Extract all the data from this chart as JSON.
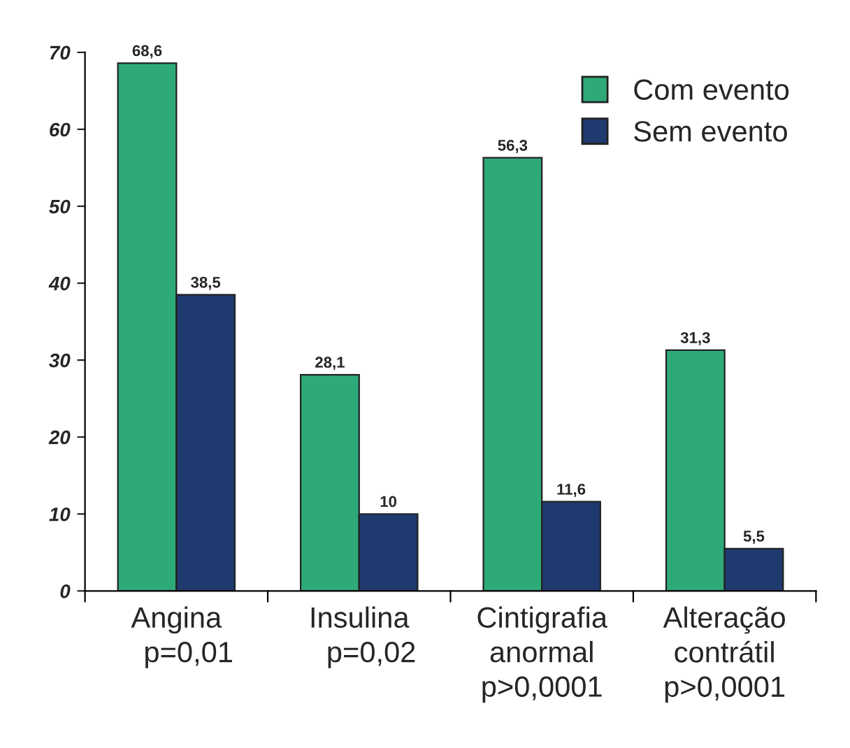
{
  "chart_data": {
    "type": "bar",
    "categories": [
      "Angina\n   p=0,01",
      "Insulina\n   p=0,02",
      "Cintigrafia\nanormal\np>0,0001",
      "Alteração\ncontrátil\np>0,0001"
    ],
    "series": [
      {
        "name": "Com evento",
        "color": "#2eaa78",
        "values": [
          68.6,
          28.1,
          56.3,
          31.3
        ],
        "value_labels": [
          "68,6",
          "28,1",
          "56,3",
          "31,3"
        ]
      },
      {
        "name": "Sem evento",
        "color": "#1f3a6e",
        "values": [
          38.5,
          10,
          11.6,
          5.5
        ],
        "value_labels": [
          "38,5",
          "10",
          "11,6",
          "5,5"
        ]
      }
    ],
    "ylim": [
      0,
      70
    ],
    "yticks": [
      0,
      10,
      20,
      30,
      40,
      50,
      60,
      70
    ],
    "grid": false,
    "legend": "top right"
  }
}
